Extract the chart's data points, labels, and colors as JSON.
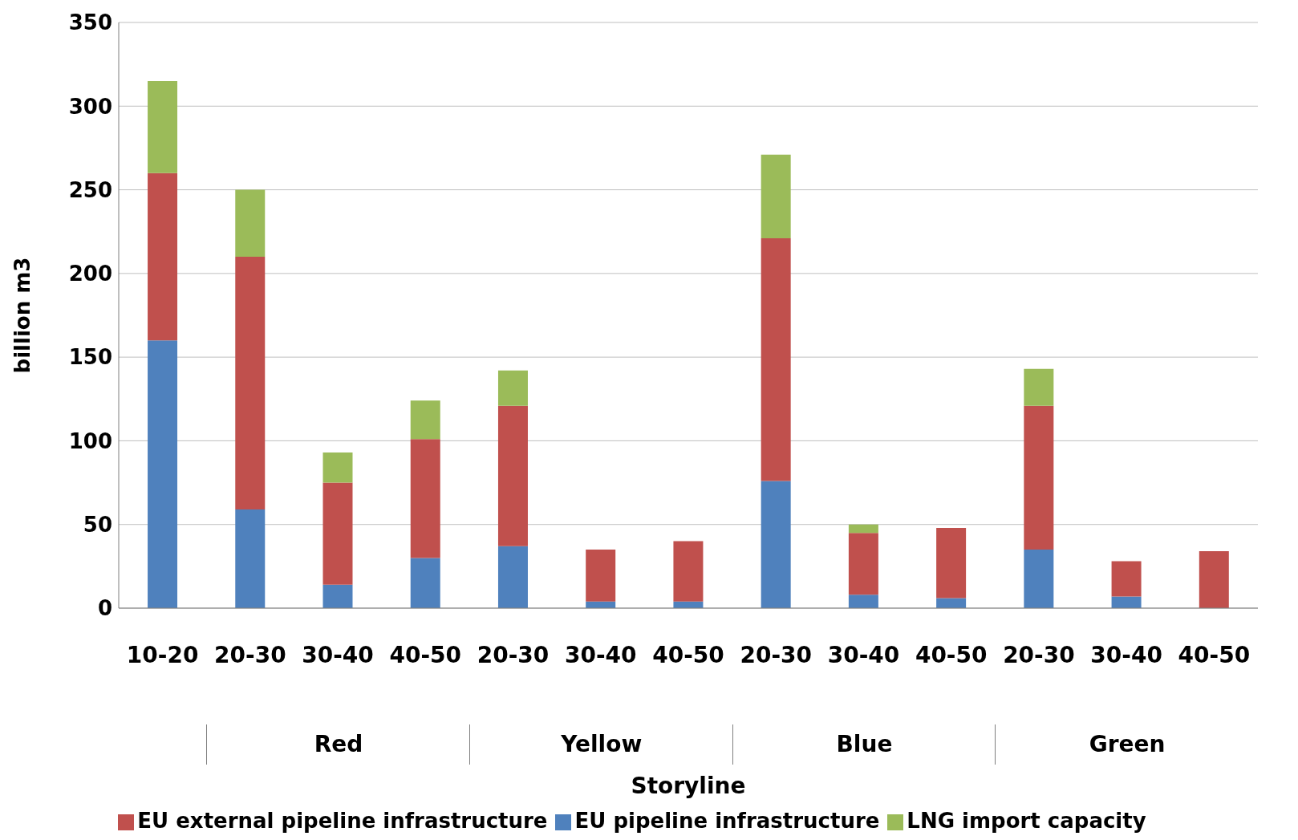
{
  "chart_data": {
    "type": "bar",
    "stacked": true,
    "xlabel": "Storyline",
    "ylabel": "billion m3",
    "categories": [
      "10-20",
      "20-30",
      "30-40",
      "40-50",
      "20-30",
      "30-40",
      "40-50",
      "20-30",
      "30-40",
      "40-50",
      "20-30",
      "30-40",
      "40-50"
    ],
    "series": [
      {
        "name": "EU pipeline  infrastructure",
        "color": "#4f81bd",
        "values": [
          160,
          59,
          14,
          30,
          37,
          4,
          4,
          76,
          8,
          6,
          35,
          7,
          0
        ]
      },
      {
        "name": "EU external pipeline infrastructure",
        "color": "#c0504d",
        "values": [
          100,
          151,
          61,
          71,
          84,
          31,
          36,
          145,
          37,
          42,
          86,
          21,
          34
        ]
      },
      {
        "name": "LNG import capacity",
        "color": "#9bbb59",
        "values": [
          55,
          40,
          18,
          23,
          21,
          0,
          0,
          50,
          5,
          0,
          22,
          0,
          0
        ]
      }
    ],
    "annotations": [
      "Red",
      "Yellow",
      "Blue",
      "Green"
    ],
    "ylim": [
      0,
      350
    ],
    "yticks": [
      0,
      50,
      100,
      150,
      200,
      250,
      300,
      350
    ],
    "grid": "y",
    "legend": "bottom"
  }
}
